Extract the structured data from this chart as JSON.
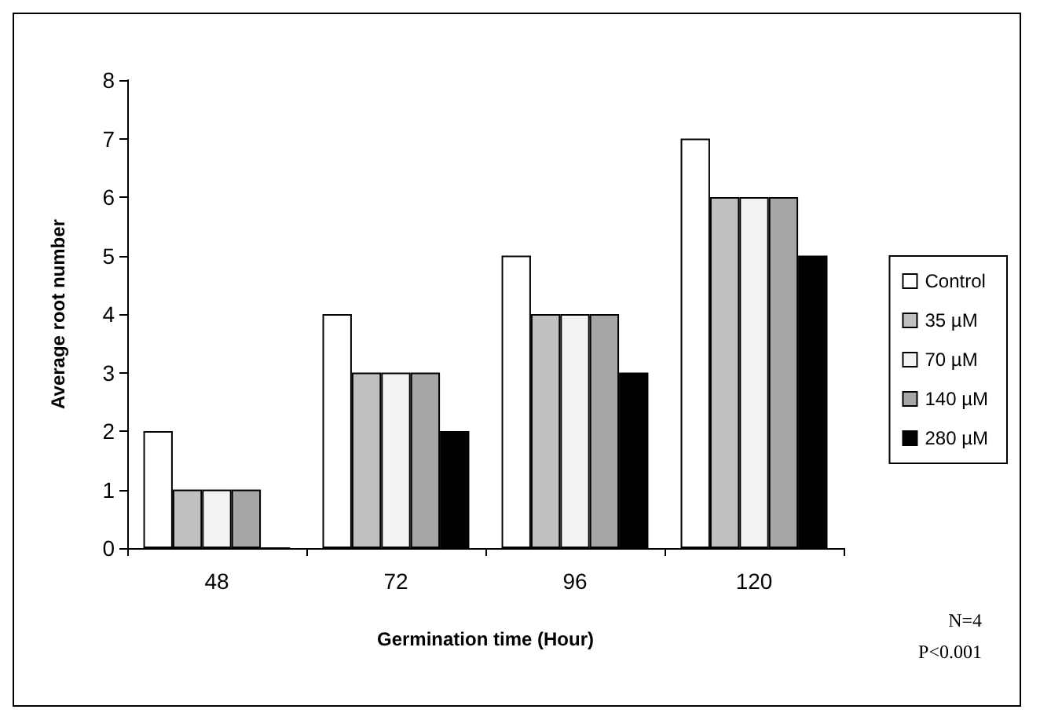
{
  "chart_data": {
    "type": "bar",
    "xlabel": "Germination time (Hour)",
    "ylabel": "Average root number",
    "categories": [
      "48",
      "72",
      "96",
      "120"
    ],
    "series": [
      {
        "name": "Control",
        "color": "#ffffff",
        "values": [
          2,
          4,
          5,
          7
        ]
      },
      {
        "name": "35 µM",
        "color": "#c0c0c0",
        "values": [
          1,
          3,
          4,
          6
        ]
      },
      {
        "name": "70 µM",
        "color": "#f2f2f2",
        "values": [
          1,
          3,
          4,
          6
        ]
      },
      {
        "name": "140 µM",
        "color": "#a6a6a6",
        "values": [
          1,
          3,
          4,
          6
        ]
      },
      {
        "name": "280 µM",
        "color": "#000000",
        "values": [
          0,
          2,
          3,
          5
        ]
      }
    ],
    "ylim": [
      0,
      8
    ],
    "yticks": [
      0,
      1,
      2,
      3,
      4,
      5,
      6,
      7,
      8
    ],
    "grid": false,
    "legend": "right",
    "annotations": [
      "N=4",
      "P<0.001"
    ]
  }
}
